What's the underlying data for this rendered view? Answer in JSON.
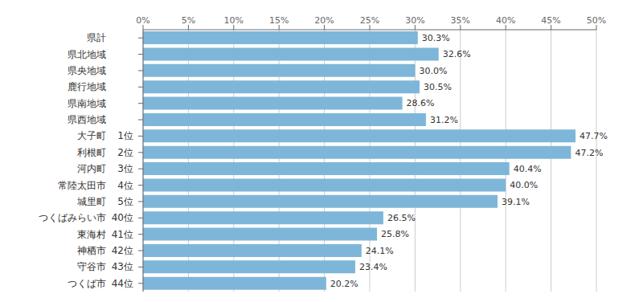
{
  "chart_data": {
    "type": "bar",
    "orientation": "horizontal",
    "categories": [
      "県計",
      "県北地域",
      "県央地域",
      "鹿行地域",
      "県南地域",
      "県西地域",
      "大子町",
      "利根町",
      "河内町",
      "常陸太田市",
      "城里町",
      "つくばみらい市",
      "東海村",
      "神栖市",
      "守谷市",
      "つくば市"
    ],
    "values": [
      30.3,
      32.6,
      30.0,
      30.5,
      28.6,
      31.2,
      47.7,
      47.2,
      40.4,
      40.0,
      39.1,
      26.5,
      25.8,
      24.1,
      23.4,
      20.2
    ],
    "value_labels": [
      "30.3%",
      "32.6%",
      "30.0%",
      "30.5%",
      "28.6%",
      "31.2%",
      "47.7%",
      "47.2%",
      "40.4%",
      "40.0%",
      "39.1%",
      "26.5%",
      "25.8%",
      "24.1%",
      "23.4%",
      "20.2%"
    ],
    "data_labels": true,
    "color": "#7EB6D9",
    "xlim": [
      0,
      50
    ],
    "xticks": [
      {
        "value": 0,
        "label": "0%"
      },
      {
        "value": 5,
        "label": "5%"
      },
      {
        "value": 10,
        "label": "10%"
      },
      {
        "value": 15,
        "label": "15%"
      },
      {
        "value": 20,
        "label": "20%"
      },
      {
        "value": 25,
        "label": "25%"
      },
      {
        "value": 30,
        "label": "30%"
      },
      {
        "value": 35,
        "label": "35%"
      },
      {
        "value": 40,
        "label": "40%"
      },
      {
        "value": 45,
        "label": "45%"
      },
      {
        "value": 50,
        "label": "50%"
      }
    ],
    "grid": true,
    "annotations": [
      {
        "category": "大子町",
        "text": "1位"
      },
      {
        "category": "利根町",
        "text": "2位"
      },
      {
        "category": "河内町",
        "text": "3位"
      },
      {
        "category": "常陸太田市",
        "text": "4位"
      },
      {
        "category": "城里町",
        "text": "5位"
      },
      {
        "category": "つくばみらい市",
        "text": "40位"
      },
      {
        "category": "東海村",
        "text": "41位"
      },
      {
        "category": "神栖市",
        "text": "42位"
      },
      {
        "category": "守谷市",
        "text": "43位"
      },
      {
        "category": "つくば市",
        "text": "44位"
      }
    ]
  }
}
